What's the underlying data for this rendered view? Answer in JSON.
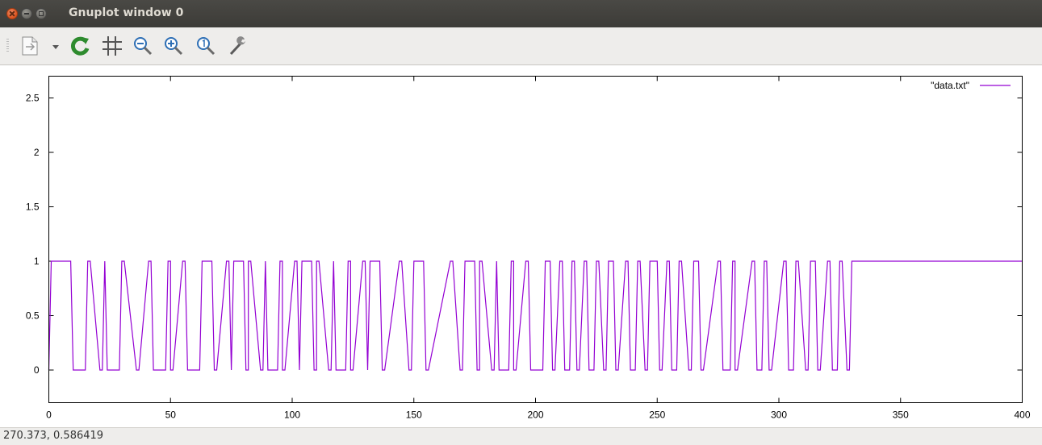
{
  "window": {
    "title": "Gnuplot window 0"
  },
  "toolbar": {
    "items": [
      "export-icon",
      "dropdown-arrow-icon",
      "replot-icon",
      "grid-icon",
      "zoom-out-icon",
      "zoom-in-icon",
      "zoom-reset-icon",
      "settings-wrench-icon"
    ]
  },
  "status": {
    "coords": "270.373,  0.586419"
  },
  "colors": {
    "series": "#9400d3",
    "titlebar": "#3c3b37",
    "close_button": "#e05a24"
  },
  "chart_data": {
    "type": "line",
    "title": "",
    "xlabel": "",
    "ylabel": "",
    "xlim": [
      0,
      400
    ],
    "ylim": [
      -0.3,
      2.7
    ],
    "xticks": [
      "0",
      "50",
      "100",
      "150",
      "200",
      "250",
      "300",
      "350",
      "400"
    ],
    "yticks": [
      "0",
      "0.5",
      "1",
      "1.5",
      "2",
      "2.5"
    ],
    "legend": "top-right",
    "grid": false,
    "series": [
      {
        "name": "\"data.txt\"",
        "x": [
          0,
          1,
          9,
          10,
          15,
          16,
          17,
          21,
          22,
          23,
          23,
          24,
          29,
          30,
          31,
          36,
          37,
          41,
          42,
          43,
          48,
          49,
          50,
          50,
          51,
          55,
          56,
          57,
          62,
          63,
          67,
          68,
          69,
          73,
          74,
          75,
          75,
          76,
          80,
          81,
          82,
          82,
          83,
          87,
          88,
          89,
          89,
          90,
          94,
          95,
          96,
          96,
          97,
          101,
          102,
          103,
          103,
          104,
          108,
          109,
          110,
          110,
          111,
          115,
          116,
          117,
          117,
          118,
          122,
          123,
          124,
          124,
          125,
          129,
          130,
          131,
          131,
          132,
          136,
          137,
          138,
          144,
          145,
          148,
          149,
          150,
          154,
          155,
          156,
          165,
          166,
          169,
          170,
          171,
          175,
          176,
          177,
          177,
          178,
          182,
          183,
          184,
          184,
          185,
          189,
          190,
          191,
          191,
          192,
          196,
          197,
          198,
          203,
          204,
          206,
          207,
          208,
          210,
          211,
          212,
          214,
          215,
          216,
          217,
          218,
          220,
          221,
          222,
          224,
          225,
          226,
          228,
          229,
          230,
          232,
          233,
          234,
          237,
          238,
          239,
          241,
          242,
          243,
          245,
          246,
          247,
          250,
          251,
          252,
          254,
          255,
          256,
          258,
          259,
          260,
          263,
          264,
          265,
          267,
          268,
          269,
          275,
          276,
          277,
          280,
          281,
          282,
          282,
          283,
          289,
          290,
          291,
          293,
          294,
          295,
          296,
          297,
          302,
          303,
          304,
          306,
          307,
          308,
          311,
          312,
          313,
          315,
          316,
          317,
          320,
          321,
          322,
          324,
          325,
          326,
          328,
          329,
          330,
          400
        ],
        "y": [
          0,
          1,
          1,
          0,
          0,
          1,
          1,
          0,
          0,
          1,
          1,
          0,
          0,
          1,
          1,
          0,
          0,
          1,
          1,
          0,
          0,
          1,
          1,
          0,
          0,
          1,
          1,
          0,
          0,
          1,
          1,
          0,
          0,
          1,
          1,
          0,
          0,
          1,
          1,
          0,
          0,
          1,
          1,
          0,
          0,
          1,
          1,
          0,
          0,
          1,
          1,
          0,
          0,
          1,
          1,
          0,
          0,
          1,
          1,
          0,
          0,
          1,
          1,
          0,
          0,
          1,
          1,
          0,
          0,
          1,
          1,
          0,
          0,
          1,
          1,
          0,
          0,
          1,
          1,
          0,
          0,
          1,
          1,
          0,
          0,
          1,
          1,
          0,
          0,
          1,
          1,
          0,
          0,
          1,
          1,
          0,
          0,
          1,
          1,
          0,
          0,
          1,
          1,
          0,
          0,
          1,
          1,
          0,
          0,
          1,
          1,
          0,
          0,
          1,
          1,
          0,
          0,
          1,
          1,
          0,
          0,
          1,
          1,
          0,
          0,
          1,
          1,
          0,
          0,
          1,
          1,
          0,
          0,
          1,
          1,
          0,
          0,
          1,
          1,
          0,
          0,
          1,
          1,
          0,
          0,
          1,
          1,
          0,
          0,
          1,
          1,
          0,
          0,
          1,
          1,
          0,
          0,
          1,
          1,
          0,
          0,
          1,
          1,
          0,
          0,
          1,
          1,
          0,
          0,
          1,
          1,
          0,
          0,
          1,
          1,
          0,
          0,
          1,
          1,
          0,
          0,
          1,
          1,
          0,
          0,
          1,
          1,
          0,
          0,
          1,
          1,
          0,
          0,
          1,
          1,
          0,
          0,
          1,
          1
        ]
      }
    ]
  }
}
